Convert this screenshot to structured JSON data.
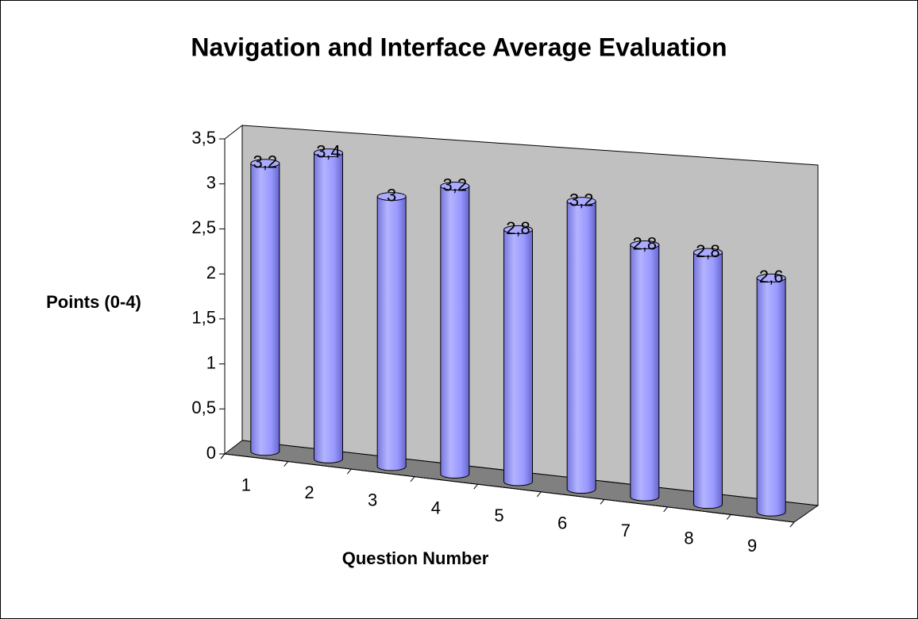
{
  "chart_data": {
    "type": "bar3d",
    "title": "Navigation and Interface Average Evaluation",
    "x_label": "Question Number",
    "y_label": "Points (0-4)",
    "categories": [
      "1",
      "2",
      "3",
      "4",
      "5",
      "6",
      "7",
      "8",
      "9"
    ],
    "values": [
      3.2,
      3.4,
      3,
      3.2,
      2.8,
      3.2,
      2.8,
      2.8,
      2.6
    ],
    "value_labels": [
      "3,2",
      "3,4",
      "3",
      "3,2",
      "2,8",
      "3,2",
      "2,8",
      "2,8",
      "2,6"
    ],
    "color": "#9999ff",
    "ylim": [
      0,
      3.5
    ],
    "yticks": [
      0,
      {
        "value": 0.5,
        "label": "0,5"
      },
      1,
      {
        "value": 1.5,
        "label": "1,5"
      },
      2,
      {
        "value": 2.5,
        "label": "2,5"
      },
      3,
      {
        "value": 3.5,
        "label": "3,5"
      }
    ]
  }
}
